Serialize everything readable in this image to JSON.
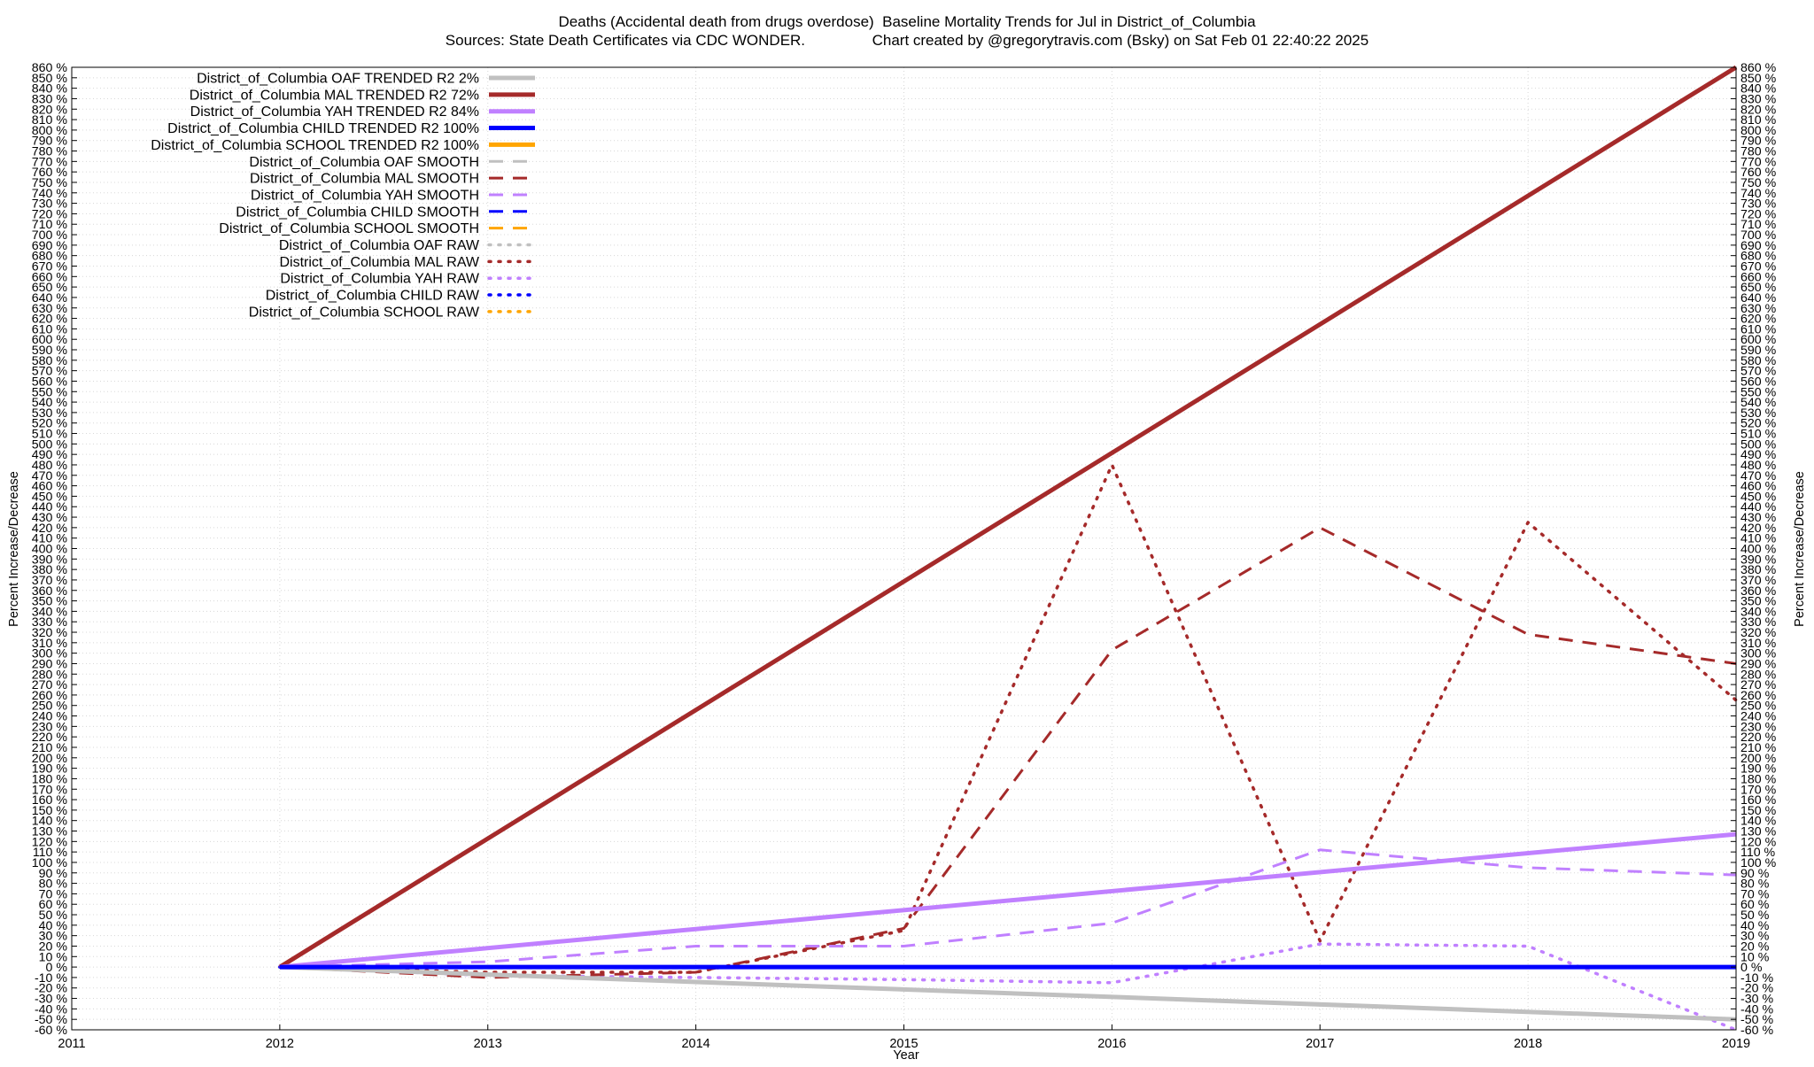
{
  "title_line1": "Deaths (Accidental death from drugs overdose)  Baseline Mortality Trends for Jul in District_of_Columbia",
  "title_line2": "Sources: State Death Certificates via CDC WONDER.                Chart created by @gregorytravis.com (Bsky) on Sat Feb 01 22:40:22 2025",
  "chart_data": {
    "type": "line",
    "xlabel": "Year",
    "ylabel": "Percent Increase/Decrease",
    "y2label": "Percent Increase/Decrease",
    "xlim": [
      2011,
      2019
    ],
    "ylim": [
      -60,
      860
    ],
    "x_ticks": [
      2011,
      2012,
      2013,
      2014,
      2015,
      2016,
      2017,
      2018,
      2019
    ],
    "y_tick_step": 10,
    "y_tick_suffix": " %",
    "grid": true,
    "legend_position": "top-left",
    "series": [
      {
        "name": "District_of_Columbia OAF TRENDED R2   2%",
        "style": "solid",
        "color": "#c0c0c0",
        "x": [
          2012,
          2019
        ],
        "y": [
          0,
          -50
        ]
      },
      {
        "name": "District_of_Columbia MAL TRENDED R2  72%",
        "style": "solid",
        "color": "#a52a2a",
        "x": [
          2012,
          2019
        ],
        "y": [
          0,
          860
        ]
      },
      {
        "name": "District_of_Columbia YAH TRENDED R2  84%",
        "style": "solid",
        "color": "#c080ff",
        "x": [
          2012,
          2019
        ],
        "y": [
          0,
          127
        ]
      },
      {
        "name": "District_of_Columbia CHILD TRENDED R2 100%",
        "style": "solid",
        "color": "#0000ff",
        "x": [
          2012,
          2019
        ],
        "y": [
          0,
          0
        ]
      },
      {
        "name": "District_of_Columbia SCHOOL TRENDED R2 100%",
        "style": "solid",
        "color": "#ffa500",
        "x": [],
        "y": []
      },
      {
        "name": "District_of_Columbia OAF SMOOTH",
        "style": "dashed",
        "color": "#c0c0c0",
        "x": [],
        "y": []
      },
      {
        "name": "District_of_Columbia MAL SMOOTH",
        "style": "dashed",
        "color": "#a52a2a",
        "x": [
          2012,
          2013,
          2014,
          2015,
          2016,
          2017,
          2018,
          2019
        ],
        "y": [
          0,
          -10,
          -5,
          37,
          303,
          420,
          318,
          290
        ]
      },
      {
        "name": "District_of_Columbia YAH SMOOTH",
        "style": "dashed",
        "color": "#c080ff",
        "x": [
          2012,
          2013,
          2014,
          2015,
          2016,
          2017,
          2018,
          2019
        ],
        "y": [
          0,
          5,
          20,
          20,
          42,
          112,
          95,
          88
        ]
      },
      {
        "name": "District_of_Columbia CHILD SMOOTH",
        "style": "dashed",
        "color": "#0000ff",
        "x": [
          2012,
          2019
        ],
        "y": [
          0,
          0
        ]
      },
      {
        "name": "District_of_Columbia SCHOOL SMOOTH",
        "style": "dashed",
        "color": "#ffa500",
        "x": [],
        "y": []
      },
      {
        "name": "District_of_Columbia OAF RAW",
        "style": "dotted",
        "color": "#c0c0c0",
        "x": [],
        "y": []
      },
      {
        "name": "District_of_Columbia MAL RAW",
        "style": "dotted",
        "color": "#a52a2a",
        "x": [
          2012,
          2013,
          2014,
          2015,
          2016,
          2017,
          2018,
          2019
        ],
        "y": [
          0,
          -5,
          -5,
          35,
          480,
          25,
          425,
          255
        ]
      },
      {
        "name": "District_of_Columbia YAH RAW",
        "style": "dotted",
        "color": "#c080ff",
        "x": [
          2012,
          2013,
          2014,
          2015,
          2016,
          2017,
          2018,
          2019
        ],
        "y": [
          0,
          -8,
          -10,
          -12,
          -15,
          22,
          20,
          -60
        ]
      },
      {
        "name": "District_of_Columbia CHILD RAW",
        "style": "dotted",
        "color": "#0000ff",
        "x": [
          2012,
          2019
        ],
        "y": [
          0,
          0
        ]
      },
      {
        "name": "District_of_Columbia SCHOOL RAW",
        "style": "dotted",
        "color": "#ffa500",
        "x": [],
        "y": []
      }
    ]
  }
}
